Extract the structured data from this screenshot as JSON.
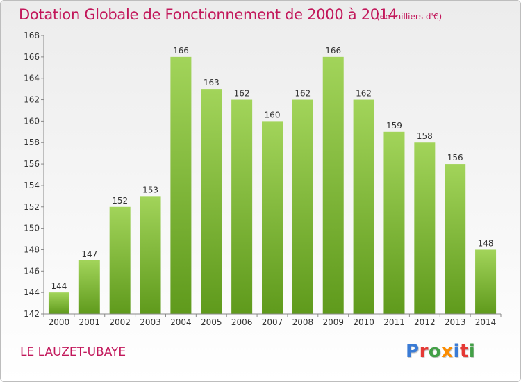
{
  "header": {
    "title": "Dotation Globale de Fonctionnement de 2000 à 2014",
    "subtitle": "(en milliers d'€)"
  },
  "footer": {
    "place": "LE LAUZET-UBAYE",
    "logo_letters": [
      {
        "char": "P",
        "color": "#3a7bd5"
      },
      {
        "char": "r",
        "color": "#e53935"
      },
      {
        "char": "o",
        "color": "#43a047"
      },
      {
        "char": "x",
        "color": "#fb8c00"
      },
      {
        "char": "i",
        "color": "#3a7bd5"
      },
      {
        "char": "t",
        "color": "#e53935"
      },
      {
        "char": "i",
        "color": "#43a047"
      }
    ]
  },
  "chart_data": {
    "type": "bar",
    "title": "Dotation Globale de Fonctionnement de 2000 à 2014",
    "subtitle": "(en milliers d'€)",
    "categories": [
      "2000",
      "2001",
      "2002",
      "2003",
      "2004",
      "2005",
      "2006",
      "2007",
      "2008",
      "2009",
      "2010",
      "2011",
      "2012",
      "2013",
      "2014"
    ],
    "values": [
      144,
      147,
      152,
      153,
      166,
      163,
      162,
      160,
      162,
      166,
      162,
      159,
      158,
      156,
      148
    ],
    "ylim": [
      142,
      168
    ],
    "yticks": [
      142,
      144,
      146,
      148,
      150,
      152,
      154,
      156,
      158,
      160,
      162,
      164,
      166,
      168
    ],
    "grid": false,
    "bar_color_top": "#a2d45a",
    "bar_color_bottom": "#5f9a1c",
    "axis_color": "#888888"
  }
}
